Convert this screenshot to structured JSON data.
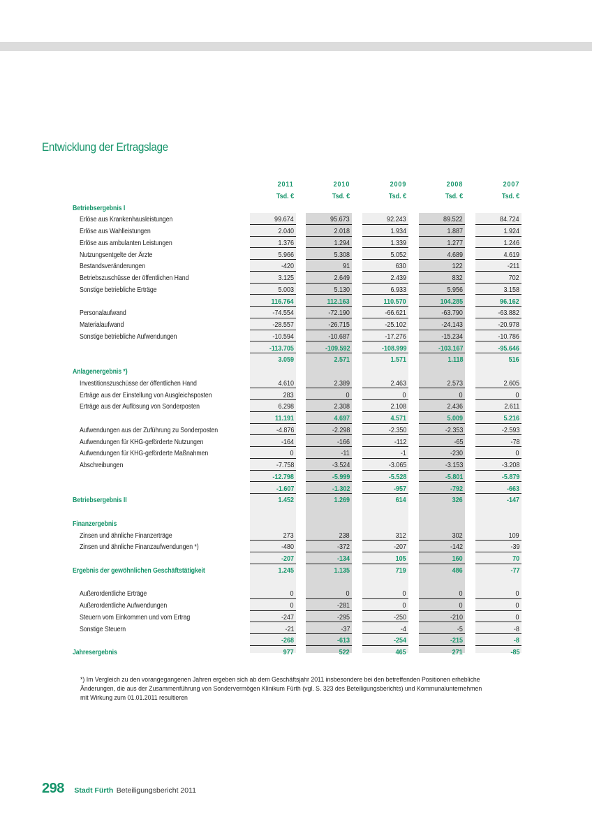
{
  "title": "Entwicklung der Ertragslage",
  "colors": {
    "accent": "#17956b",
    "band_light": "#efefef",
    "band_dark": "#d8d8d8"
  },
  "columns": [
    {
      "year": "2011",
      "unit": "Tsd. €"
    },
    {
      "year": "2010",
      "unit": "Tsd. €"
    },
    {
      "year": "2009",
      "unit": "Tsd. €"
    },
    {
      "year": "2008",
      "unit": "Tsd. €"
    },
    {
      "year": "2007",
      "unit": "Tsd. €"
    }
  ],
  "rows": [
    {
      "type": "section",
      "label": "Betriebsergebnis I"
    },
    {
      "type": "item",
      "label": "Erlöse aus Krankenhausleistungen",
      "values": [
        "99.674",
        "95.673",
        "92.243",
        "89.522",
        "84.724"
      ]
    },
    {
      "type": "item",
      "label": "Erlöse aus Wahlleistungen",
      "values": [
        "2.040",
        "2.018",
        "1.934",
        "1.887",
        "1.924"
      ]
    },
    {
      "type": "item",
      "label": "Erlöse aus ambulanten Leistungen",
      "values": [
        "1.376",
        "1.294",
        "1.339",
        "1.277",
        "1.246"
      ]
    },
    {
      "type": "item",
      "label": "Nutzungsentgelte der Ärzte",
      "values": [
        "5.966",
        "5.308",
        "5.052",
        "4.689",
        "4.619"
      ]
    },
    {
      "type": "item",
      "label": "Bestandsveränderungen",
      "values": [
        "-420",
        "91",
        "630",
        "122",
        "-211"
      ]
    },
    {
      "type": "item",
      "label": "Betriebszuschüsse der öffentlichen Hand",
      "values": [
        "3.125",
        "2.649",
        "2.439",
        "832",
        "702"
      ]
    },
    {
      "type": "item",
      "label": "Sonstige betriebliche Erträge",
      "values": [
        "5.003",
        "5.130",
        "6.933",
        "5.956",
        "3.158"
      ]
    },
    {
      "type": "sum",
      "label": "",
      "values": [
        "116.764",
        "112.163",
        "110.570",
        "104.285",
        "96.162"
      ]
    },
    {
      "type": "item",
      "label": "Personalaufwand",
      "values": [
        "-74.554",
        "-72.190",
        "-66.621",
        "-63.790",
        "-63.882"
      ]
    },
    {
      "type": "item",
      "label": "Materialaufwand",
      "values": [
        "-28.557",
        "-26.715",
        "-25.102",
        "-24.143",
        "-20.978"
      ]
    },
    {
      "type": "item",
      "label": "Sonstige betriebliche Aufwendungen",
      "values": [
        "-10.594",
        "-10.687",
        "-17.276",
        "-15.234",
        "-10.786"
      ]
    },
    {
      "type": "sum",
      "label": "",
      "values": [
        "-113.705",
        "-109.592",
        "-108.999",
        "-103.167",
        "-95.646"
      ]
    },
    {
      "type": "total",
      "label": "",
      "values": [
        "3.059",
        "2.571",
        "1.571",
        "1.118",
        "516"
      ]
    },
    {
      "type": "section",
      "label": "Anlagenergebnis *)"
    },
    {
      "type": "item",
      "label": "Investitionszuschüsse der öffentlichen Hand",
      "values": [
        "4.610",
        "2.389",
        "2.463",
        "2.573",
        "2.605"
      ]
    },
    {
      "type": "item",
      "label": "Erträge aus der Einstellung von Ausgleichsposten",
      "values": [
        "283",
        "0",
        "0",
        "0",
        "0"
      ]
    },
    {
      "type": "item",
      "label": "Erträge aus der Auflösung von Sonderposten",
      "values": [
        "6.298",
        "2.308",
        "2.108",
        "2.436",
        "2.611"
      ]
    },
    {
      "type": "sum",
      "label": "",
      "values": [
        "11.191",
        "4.697",
        "4.571",
        "5.009",
        "5.216"
      ]
    },
    {
      "type": "item",
      "label": "Aufwendungen aus der Zuführung zu Sonderposten",
      "values": [
        "-4.876",
        "-2.298",
        "-2.350",
        "-2.353",
        "-2.593"
      ]
    },
    {
      "type": "item",
      "label": "Aufwendungen für KHG-geförderte Nutzungen",
      "values": [
        "-164",
        "-166",
        "-112",
        "-65",
        "-78"
      ]
    },
    {
      "type": "item",
      "label": "Aufwendungen für KHG-geförderte Maßnahmen",
      "values": [
        "0",
        "-11",
        "-1",
        "-230",
        "0"
      ]
    },
    {
      "type": "item",
      "label": "Abschreibungen",
      "values": [
        "-7.758",
        "-3.524",
        "-3.065",
        "-3.153",
        "-3.208"
      ]
    },
    {
      "type": "sum",
      "label": "",
      "values": [
        "-12.798",
        "-5.999",
        "-5.528",
        "-5.801",
        "-5.879"
      ]
    },
    {
      "type": "sum",
      "label": "",
      "values": [
        "-1.607",
        "-1.302",
        "-957",
        "-792",
        "-663"
      ]
    },
    {
      "type": "total",
      "label": "Betriebsergebnis II",
      "values": [
        "1.452",
        "1.269",
        "614",
        "326",
        "-147"
      ]
    },
    {
      "type": "blank",
      "label": ""
    },
    {
      "type": "section",
      "label": "Finanzergebnis"
    },
    {
      "type": "item",
      "label": "Zinsen und ähnliche Finanzerträge",
      "values": [
        "273",
        "238",
        "312",
        "302",
        "109"
      ]
    },
    {
      "type": "item",
      "label": "Zinsen und ähnliche Finanzaufwendungen *)",
      "values": [
        "-480",
        "-372",
        "-207",
        "-142",
        "-39"
      ]
    },
    {
      "type": "sum",
      "label": "",
      "values": [
        "-207",
        "-134",
        "105",
        "160",
        "70"
      ]
    },
    {
      "type": "total",
      "label": "Ergebnis der gewöhnlichen Geschäftstätigkeit",
      "values": [
        "1.245",
        "1.135",
        "719",
        "486",
        "-77"
      ]
    },
    {
      "type": "blank",
      "label": ""
    },
    {
      "type": "item",
      "label": "Außerordentliche Erträge",
      "values": [
        "0",
        "0",
        "0",
        "0",
        "0"
      ]
    },
    {
      "type": "item",
      "label": "Außerordentliche Aufwendungen",
      "values": [
        "0",
        "-281",
        "0",
        "0",
        "0"
      ]
    },
    {
      "type": "item",
      "label": "Steuern vom Einkommen und vom Ertrag",
      "values": [
        "-247",
        "-295",
        "-250",
        "-210",
        "0"
      ]
    },
    {
      "type": "item",
      "label": "Sonstige Steuern",
      "values": [
        "-21",
        "-37",
        "-4",
        "-5",
        "-8"
      ]
    },
    {
      "type": "sum",
      "label": "",
      "values": [
        "-268",
        "-613",
        "-254",
        "-215",
        "-8"
      ]
    },
    {
      "type": "total",
      "label": "Jahresergebnis",
      "values": [
        "977",
        "522",
        "465",
        "271",
        "-85"
      ]
    }
  ],
  "footnote": "*) Im Vergleich zu den vorangegangenen Jahren ergeben sich ab dem Geschäftsjahr 2011 insbesondere bei den betreffenden Positionen erhebliche Änderungen, die aus der Zusammenführung von Sondervermögen Klinikum Fürth (vgl. S. 323 des Beteiligungsberichts) und Kommunalunternehmen mit Wirkung zum 01.01.2011 resultieren",
  "footer": {
    "page_number": "298",
    "publisher": "Stadt Fürth",
    "publication": "Beteiligungsbericht 2011"
  }
}
